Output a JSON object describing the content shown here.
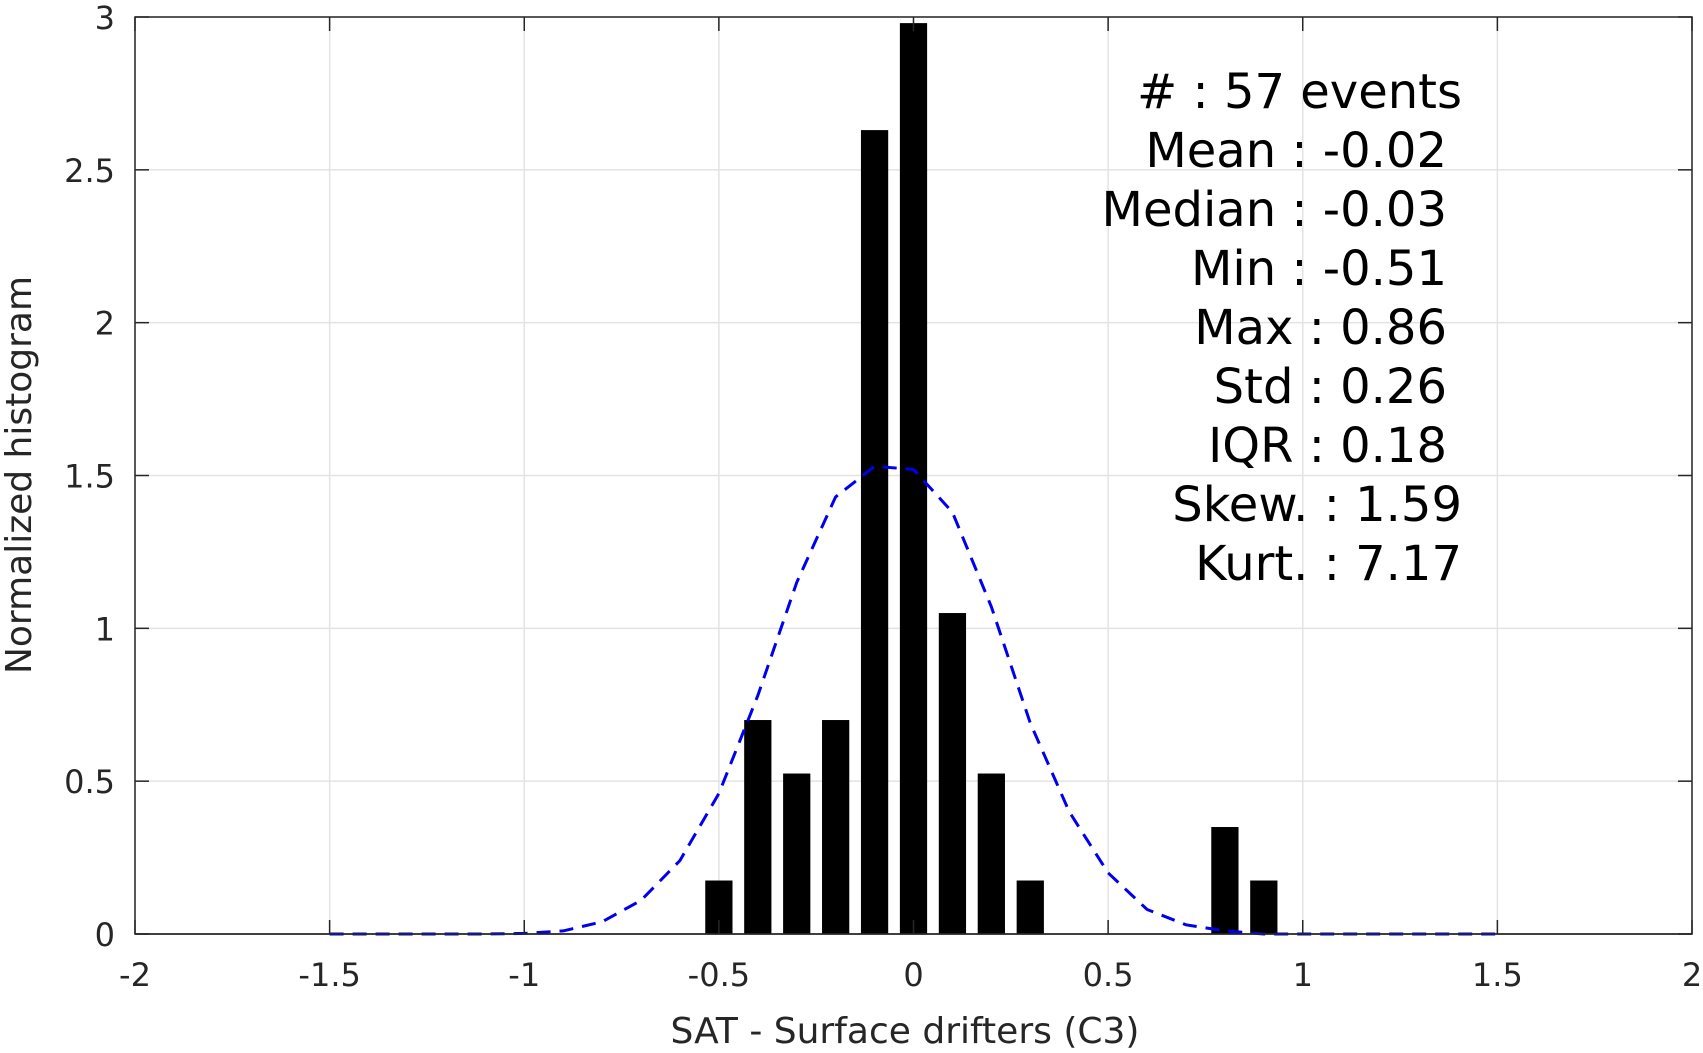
{
  "chart_data": {
    "type": "bar",
    "xlabel": "SAT - Surface drifters (C3)",
    "ylabel": "Normalized histogram",
    "xlim": [
      -2,
      2
    ],
    "ylim": [
      0,
      3
    ],
    "x_ticks": [
      "-2",
      "-1.5",
      "-1",
      "-0.5",
      "0",
      "0.5",
      "1",
      "1.5",
      "2"
    ],
    "y_ticks": [
      "0",
      "0.5",
      "1",
      "1.5",
      "2",
      "2.5",
      "3"
    ],
    "grid": true,
    "bar_width": 0.07,
    "bars": [
      {
        "x": -0.5,
        "y": 0.175
      },
      {
        "x": -0.4,
        "y": 0.7
      },
      {
        "x": -0.3,
        "y": 0.525
      },
      {
        "x": -0.2,
        "y": 0.7
      },
      {
        "x": -0.1,
        "y": 2.63
      },
      {
        "x": 0.0,
        "y": 2.98
      },
      {
        "x": 0.1,
        "y": 1.05
      },
      {
        "x": 0.2,
        "y": 0.525
      },
      {
        "x": 0.3,
        "y": 0.175
      },
      {
        "x": 0.8,
        "y": 0.35
      },
      {
        "x": 0.9,
        "y": 0.175
      }
    ],
    "series": [
      {
        "type": "line",
        "style": "dashed",
        "color": "#0000ee",
        "x": [
          -1.5,
          -1.4,
          -1.3,
          -1.2,
          -1.1,
          -1.0,
          -0.9,
          -0.8,
          -0.7,
          -0.6,
          -0.5,
          -0.4,
          -0.3,
          -0.2,
          -0.1,
          0.0,
          0.1,
          0.2,
          0.3,
          0.4,
          0.5,
          0.6,
          0.7,
          0.8,
          0.9,
          1.0,
          1.1,
          1.2,
          1.3,
          1.4,
          1.5
        ],
        "y": [
          0.0,
          0.0,
          0.0,
          0.0,
          0.0,
          0.002,
          0.01,
          0.04,
          0.11,
          0.24,
          0.46,
          0.78,
          1.15,
          1.43,
          1.53,
          1.52,
          1.38,
          1.07,
          0.69,
          0.4,
          0.2,
          0.08,
          0.03,
          0.01,
          0.0,
          0.0,
          0.0,
          0.0,
          0.0,
          0.0,
          0.0
        ]
      }
    ],
    "colors": {
      "bar": "#000000",
      "grid": "#e3e3e3",
      "axis": "#262626",
      "fit_line": "#0000ee"
    },
    "stats": [
      {
        "label": "#  : 57 events"
      },
      {
        "label": "Mean : -0.02"
      },
      {
        "label": "Median : -0.03"
      },
      {
        "label": "Min : -0.51"
      },
      {
        "label": "Max : 0.86"
      },
      {
        "label": "Std : 0.26"
      },
      {
        "label": "IQR : 0.18"
      },
      {
        "label": "Skew. : 1.59"
      },
      {
        "label": "Kurt. : 7.17"
      }
    ]
  }
}
